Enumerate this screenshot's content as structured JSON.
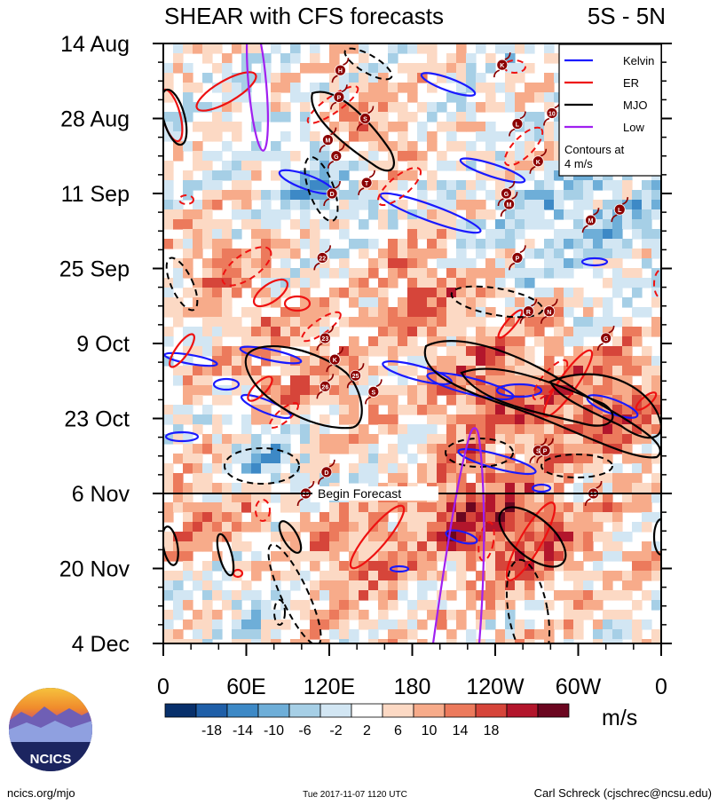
{
  "chart_data": {
    "type": "heatmap",
    "title": "SHEAR with CFS forecasts",
    "region_label": "5S - 5N",
    "y_tick_labels": [
      "14 Aug",
      "28 Aug",
      "11 Sep",
      "25 Sep",
      "9 Oct",
      "23 Oct",
      "6 Nov",
      "20 Nov",
      "4 Dec"
    ],
    "y_tick_days": [
      0,
      14,
      28,
      42,
      56,
      70,
      84,
      98,
      112
    ],
    "x_tick_labels": [
      "0",
      "60E",
      "120E",
      "180",
      "120W",
      "60W",
      "0"
    ],
    "x_tick_lons": [
      0,
      60,
      120,
      180,
      240,
      300,
      360
    ],
    "xlim": [
      0,
      360
    ],
    "ylim_days": [
      0,
      112
    ],
    "forecast_line_day": 84,
    "forecast_label": "Begin Forecast",
    "legend": [
      {
        "name": "Kelvin",
        "color": "#1a1aff"
      },
      {
        "name": "ER",
        "color": "#ee1111"
      },
      {
        "name": "MJO",
        "color": "#000000"
      },
      {
        "name": "Low",
        "color": "#a020f0"
      }
    ],
    "legend_note_1": "Contours at",
    "legend_note_2": "4 m/s",
    "colorbar": {
      "units": "m/s",
      "tick_labels": [
        "-18",
        "-14",
        "-10",
        "-6",
        "-2",
        "2",
        "6",
        "10",
        "14",
        "18"
      ],
      "colors": [
        "#08306b",
        "#1f5fa8",
        "#3d89c6",
        "#6eaed8",
        "#a6cfe6",
        "#d2e6f3",
        "#ffffff",
        "#fcd9c4",
        "#f7ab8a",
        "#ec7a5c",
        "#d6453a",
        "#b3162c",
        "#6b0620"
      ]
    },
    "cyclone_markers": [
      {
        "label": "H",
        "lon": 128,
        "day": 5
      },
      {
        "label": "P",
        "lon": 127,
        "day": 10
      },
      {
        "label": "S",
        "lon": 146,
        "day": 14
      },
      {
        "label": "M",
        "lon": 119,
        "day": 18
      },
      {
        "label": "G",
        "lon": 125,
        "day": 21
      },
      {
        "label": "T",
        "lon": 147,
        "day": 26
      },
      {
        "label": "D",
        "lon": 122,
        "day": 28
      },
      {
        "label": "K",
        "lon": 245,
        "day": 4
      },
      {
        "label": "10",
        "lon": 281,
        "day": 13
      },
      {
        "label": "L",
        "lon": 256,
        "day": 15
      },
      {
        "label": "K",
        "lon": 271,
        "day": 22
      },
      {
        "label": "G",
        "lon": 248,
        "day": 28
      },
      {
        "label": "M",
        "lon": 250,
        "day": 30
      },
      {
        "label": "M",
        "lon": 309,
        "day": 33
      },
      {
        "label": "L",
        "lon": 330,
        "day": 31
      },
      {
        "label": "22",
        "lon": 115,
        "day": 40
      },
      {
        "label": "P",
        "lon": 256,
        "day": 40
      },
      {
        "label": "R",
        "lon": 264,
        "day": 50
      },
      {
        "label": "N",
        "lon": 279,
        "day": 50
      },
      {
        "label": "G",
        "lon": 320,
        "day": 55
      },
      {
        "label": "23",
        "lon": 117,
        "day": 55
      },
      {
        "label": "K",
        "lon": 124,
        "day": 59
      },
      {
        "label": "25",
        "lon": 139,
        "day": 62
      },
      {
        "label": "26",
        "lon": 117,
        "day": 64
      },
      {
        "label": "S",
        "lon": 152,
        "day": 65
      },
      {
        "label": "S",
        "lon": 271,
        "day": 76
      },
      {
        "label": "P",
        "lon": 276,
        "day": 76
      },
      {
        "label": "D",
        "lon": 118,
        "day": 80
      },
      {
        "label": "29",
        "lon": 103,
        "day": 84
      },
      {
        "label": "19",
        "lon": 311,
        "day": 84
      }
    ]
  },
  "footer": {
    "org": "NCICS",
    "url": "ncics.org/mjo",
    "timestamp": "Tue 2017-11-07 1120 UTC",
    "author": "Carl Schreck (cjschrec@ncsu.edu)"
  }
}
